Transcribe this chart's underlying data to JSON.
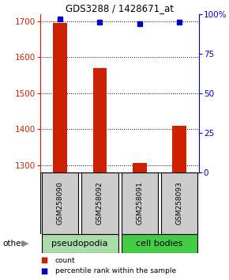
{
  "title": "GDS3288 / 1428671_at",
  "samples": [
    "GSM258090",
    "GSM258092",
    "GSM258091",
    "GSM258093"
  ],
  "bar_values": [
    1695,
    1570,
    1305,
    1410
  ],
  "percentile_values": [
    97,
    95,
    94,
    95
  ],
  "ylim_left": [
    1280,
    1720
  ],
  "ylim_right": [
    0,
    100
  ],
  "yticks_left": [
    1300,
    1400,
    1500,
    1600,
    1700
  ],
  "yticks_right": [
    0,
    25,
    50,
    75,
    100
  ],
  "bar_color": "#cc2200",
  "dot_color": "#0000cc",
  "bar_bottom": 1280,
  "bar_width": 0.35,
  "groups": [
    {
      "label": "pseudopodia",
      "color": "#99ee99",
      "samples": [
        0,
        1
      ]
    },
    {
      "label": "cell bodies",
      "color": "#44dd44",
      "samples": [
        2,
        3
      ]
    }
  ],
  "other_label": "other",
  "legend_count_color": "#cc2200",
  "legend_percentile_color": "#0000cc",
  "left_axis_color": "#cc2200",
  "right_axis_color": "#0000cc",
  "background_color": "#ffffff",
  "sample_label_bg": "#cccccc",
  "pseudopodia_color": "#aaddaa",
  "cell_bodies_color": "#44cc44"
}
